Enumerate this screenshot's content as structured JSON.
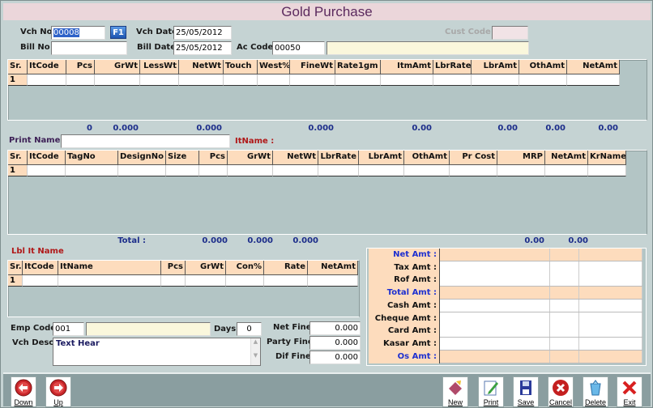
{
  "title": "Gold Purchase",
  "header": {
    "vch_no_label": "Vch No",
    "vch_no": "00008",
    "f1_label": "F1",
    "vch_date_label": "Vch Date",
    "vch_date": "25/05/2012",
    "cust_code_label": "Cust Code",
    "cust_code": "",
    "bill_no_label": "Bill No",
    "bill_no": "",
    "bill_date_label": "Bill Date",
    "bill_date": "25/05/2012",
    "ac_code_label": "Ac Code",
    "ac_code": "00050",
    "ac_name": ""
  },
  "grid1": {
    "headers": [
      "Sr.",
      "ItCode",
      "Pcs",
      "GrWt",
      "LessWt",
      "NetWt",
      "Touch",
      "West%",
      "FineWt",
      "Rate1gm",
      "ItmAmt",
      "LbrRate",
      "LbrAmt",
      "OthAmt",
      "NetAmt"
    ],
    "row_sr": "1",
    "totals": {
      "pcs": "0",
      "grwt": "0.000",
      "netwt": "0.000",
      "finewt": "0.000",
      "itmamt": "0.00",
      "lbramt": "0.00",
      "othamt": "0.00",
      "netamt": "0.00"
    }
  },
  "print_name_label": "Print Name :",
  "print_name": "",
  "itname_label": "ItName :",
  "grid2": {
    "headers": [
      "Sr.",
      "ItCode",
      "TagNo",
      "DesignNo",
      "Size",
      "Pcs",
      "GrWt",
      "NetWt",
      "LbrRate",
      "LbrAmt",
      "OthAmt",
      "Pr Cost",
      "MRP",
      "NetAmt",
      "KrName"
    ],
    "row_sr": "1",
    "totals": {
      "label": "Total :",
      "pcs": "0.000",
      "grwt": "0.000",
      "netwt": "0.000",
      "mrp": "0.00",
      "netamt": "0.00"
    }
  },
  "lbl_it_name": "Lbl It Name",
  "grid3": {
    "headers": [
      "Sr.",
      "ItCode",
      "ItName",
      "Pcs",
      "GrWt",
      "Con%",
      "Rate",
      "NetAmt"
    ],
    "row_sr": "1"
  },
  "footer": {
    "emp_code_label": "Emp Code",
    "emp_code": "001",
    "emp_name": "",
    "days_label": "Days",
    "days": "0",
    "vch_desc_label": "Vch Desc",
    "vch_desc": "Text Hear",
    "net_fine_label": "Net Fine",
    "net_fine": "0.000",
    "party_fine_label": "Party Fine",
    "party_fine": "0.000",
    "dif_fine_label": "Dif Fine",
    "dif_fine": "0.000"
  },
  "summary": [
    {
      "label": "Net Amt :",
      "highlight": true
    },
    {
      "label": "Tax Amt :",
      "highlight": false
    },
    {
      "label": "Rof Amt :",
      "highlight": false
    },
    {
      "label": "Total Amt :",
      "highlight": true
    },
    {
      "label": "Cash Amt :",
      "highlight": false
    },
    {
      "label": "Cheque Amt :",
      "highlight": false
    },
    {
      "label": "Card Amt :",
      "highlight": false
    },
    {
      "label": "Kasar Amt :",
      "highlight": false
    },
    {
      "label": "Os Amt :",
      "highlight": true
    }
  ],
  "toolbar": {
    "left": [
      {
        "label": "Down",
        "icon": "arrow-left-circle-icon"
      },
      {
        "label": "Up",
        "icon": "arrow-right-circle-icon"
      }
    ],
    "right": [
      {
        "label": "New",
        "icon": "eraser-icon"
      },
      {
        "label": "Print",
        "icon": "pencil-paper-icon"
      },
      {
        "label": "Save",
        "icon": "floppy-disk-icon"
      },
      {
        "label": "Cancel",
        "icon": "cancel-circle-icon"
      },
      {
        "label": "Delete",
        "icon": "recycle-bin-icon"
      },
      {
        "label": "Exit",
        "icon": "red-x-icon"
      }
    ]
  },
  "colors": {
    "accent_title": "#5b2a5e",
    "header_cell": "#fddcbd",
    "total_text": "#1c2d8a",
    "red_label": "#b01818",
    "blue_label": "#1d2fd0"
  }
}
